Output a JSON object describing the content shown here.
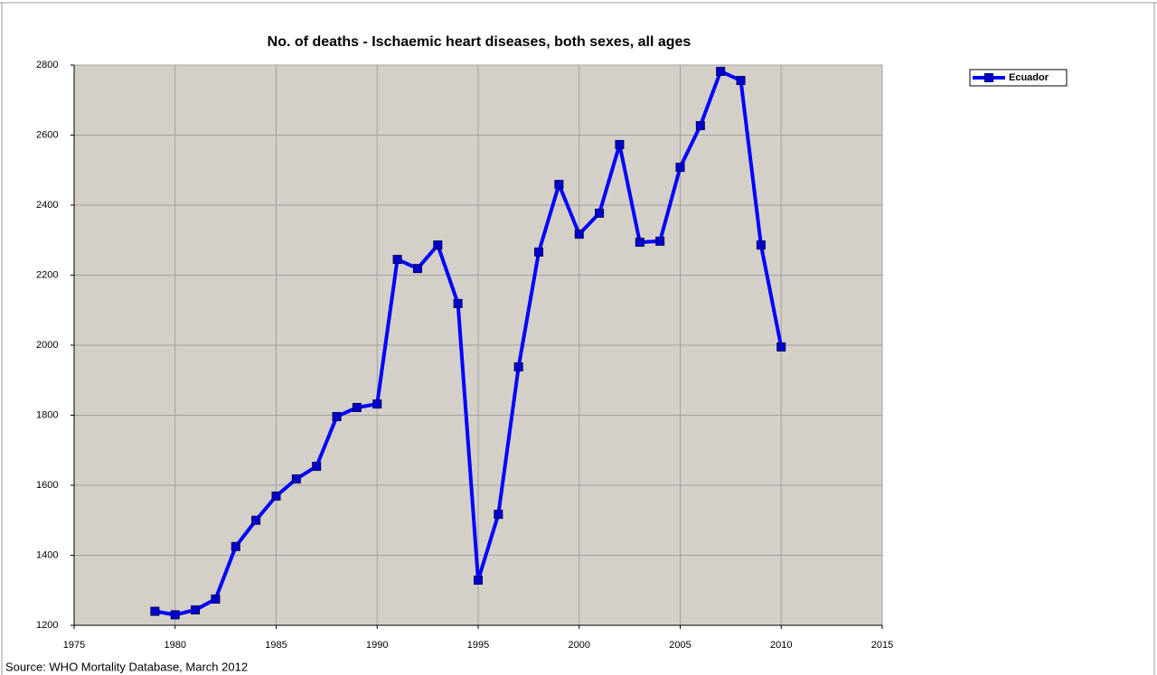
{
  "chart_data": {
    "type": "line",
    "title": "No. of deaths - Ischaemic heart diseases, both sexes, all ages",
    "source": "Source: WHO Mortality Database, March 2012",
    "x": [
      1979,
      1980,
      1981,
      1982,
      1983,
      1984,
      1985,
      1986,
      1987,
      1988,
      1989,
      1990,
      1991,
      1992,
      1993,
      1994,
      1995,
      1996,
      1997,
      1998,
      1999,
      2000,
      2001,
      2002,
      2003,
      2004,
      2005,
      2006,
      2007,
      2008,
      2009,
      2010
    ],
    "series": [
      {
        "name": "Ecuador",
        "color": "#0000ff",
        "values": [
          1240,
          1230,
          1244,
          1275,
          1425,
          1500,
          1569,
          1618,
          1654,
          1796,
          1822,
          1832,
          2245,
          2219,
          2286,
          2119,
          1329,
          1517,
          1938,
          2266,
          2459,
          2317,
          2377,
          2573,
          2294,
          2297,
          2508,
          2627,
          2782,
          2756,
          2286,
          1995
        ]
      }
    ],
    "xlim": [
      1975,
      2015
    ],
    "xticks": [
      1975,
      1980,
      1985,
      1990,
      1995,
      2000,
      2005,
      2010,
      2015
    ],
    "ylim": [
      1200,
      2800
    ],
    "yticks": [
      1200,
      1400,
      1600,
      1800,
      2000,
      2200,
      2400,
      2600,
      2800
    ],
    "grid": true,
    "legend": "top-right"
  }
}
